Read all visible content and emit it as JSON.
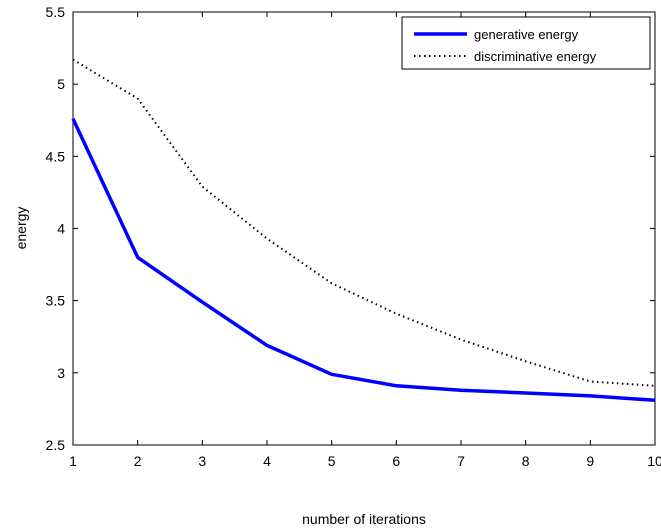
{
  "chart_data": {
    "type": "line",
    "title": "",
    "xlabel": "number of iterations",
    "ylabel": "energy",
    "xlim": [
      1,
      10
    ],
    "ylim": [
      2.5,
      5.5
    ],
    "x": [
      1,
      2,
      3,
      4,
      5,
      6,
      7,
      8,
      9,
      10
    ],
    "xticks": [
      "1",
      "2",
      "3",
      "4",
      "5",
      "6",
      "7",
      "8",
      "9",
      "10"
    ],
    "yticks": [
      "2.5",
      "3",
      "3.5",
      "4",
      "4.5",
      "5",
      "5.5"
    ],
    "grid": false,
    "legend_position": "top-right",
    "series": [
      {
        "name": "generative energy",
        "style": "solid",
        "color": "#0000ff",
        "values": [
          4.76,
          3.8,
          3.49,
          3.19,
          2.99,
          2.91,
          2.88,
          2.86,
          2.84,
          2.81
        ]
      },
      {
        "name": "discriminative energy",
        "style": "dotted",
        "color": "#000000",
        "values": [
          5.17,
          4.9,
          4.29,
          3.93,
          3.62,
          3.41,
          3.23,
          3.08,
          2.94,
          2.91
        ]
      }
    ]
  }
}
